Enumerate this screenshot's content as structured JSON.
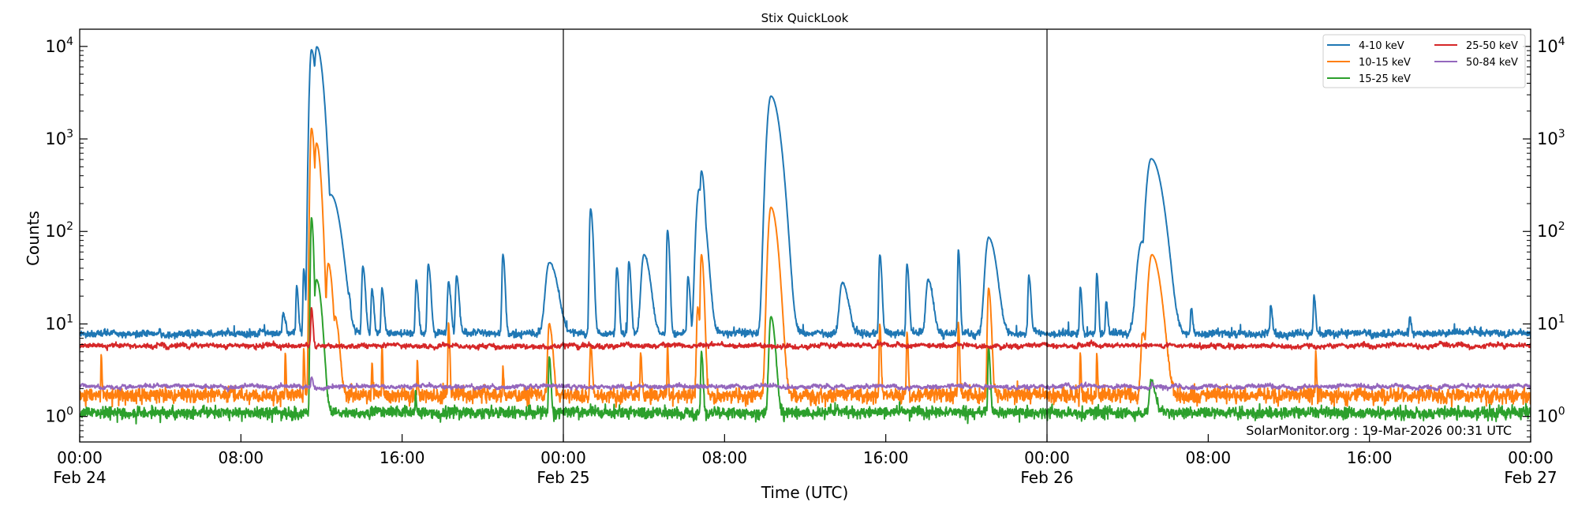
{
  "chart_data": {
    "type": "line",
    "title": "Stix QuickLook",
    "xlabel": "Time (UTC)",
    "ylabel": "Counts",
    "yscale": "log",
    "ylim": [
      0.53,
      15350
    ],
    "xlim": [
      "Feb 24 00:00",
      "Feb 27 00:00"
    ],
    "grid": false,
    "legend_position": "top-right",
    "day_separators": [
      "Feb 25 00:00",
      "Feb 26 00:00"
    ],
    "yticks": [
      {
        "base": "10",
        "exp": "0",
        "value": 1
      },
      {
        "base": "10",
        "exp": "1",
        "value": 10
      },
      {
        "base": "10",
        "exp": "2",
        "value": 100
      },
      {
        "base": "10",
        "exp": "3",
        "value": 1000
      },
      {
        "base": "10",
        "exp": "4",
        "value": 10000
      }
    ],
    "xticks": [
      {
        "t": "Feb 24 00:00",
        "label": "00:00",
        "sub": "Feb 24"
      },
      {
        "t": "Feb 24 08:00",
        "label": "08:00",
        "sub": ""
      },
      {
        "t": "Feb 24 16:00",
        "label": "16:00",
        "sub": ""
      },
      {
        "t": "Feb 25 00:00",
        "label": "00:00",
        "sub": "Feb 25"
      },
      {
        "t": "Feb 25 08:00",
        "label": "08:00",
        "sub": ""
      },
      {
        "t": "Feb 25 16:00",
        "label": "16:00",
        "sub": ""
      },
      {
        "t": "Feb 26 00:00",
        "label": "00:00",
        "sub": "Feb 26"
      },
      {
        "t": "Feb 26 08:00",
        "label": "08:00",
        "sub": ""
      },
      {
        "t": "Feb 26 16:00",
        "label": "16:00",
        "sub": ""
      },
      {
        "t": "Feb 27 00:00",
        "label": "00:00",
        "sub": "Feb 27"
      }
    ],
    "series": [
      {
        "name": "4-10 keV",
        "color": "#1f77b4",
        "baseline": 7.9,
        "peaks": [
          {
            "t": "Feb 24 10:06",
            "v": 13,
            "dur_min": 6
          },
          {
            "t": "Feb 24 10:46",
            "v": 26,
            "dur_min": 4
          },
          {
            "t": "Feb 24 11:07",
            "v": 39,
            "dur_min": 4
          },
          {
            "t": "Feb 24 11:30",
            "v": 9200,
            "dur_min": 10
          },
          {
            "t": "Feb 24 11:46",
            "v": 9900,
            "dur_min": 14
          },
          {
            "t": "Feb 24 12:27",
            "v": 250,
            "dur_min": 22
          },
          {
            "t": "Feb 24 13:21",
            "v": 22,
            "dur_min": 5
          },
          {
            "t": "Feb 24 14:03",
            "v": 42,
            "dur_min": 6
          },
          {
            "t": "Feb 24 14:30",
            "v": 24,
            "dur_min": 5
          },
          {
            "t": "Feb 24 15:00",
            "v": 24,
            "dur_min": 5
          },
          {
            "t": "Feb 24 16:42",
            "v": 30,
            "dur_min": 5
          },
          {
            "t": "Feb 24 17:18",
            "v": 44,
            "dur_min": 6
          },
          {
            "t": "Feb 24 18:18",
            "v": 28,
            "dur_min": 6
          },
          {
            "t": "Feb 24 18:42",
            "v": 33,
            "dur_min": 6
          },
          {
            "t": "Feb 24 21:00",
            "v": 56,
            "dur_min": 5
          },
          {
            "t": "Feb 24 23:18",
            "v": 46,
            "dur_min": 20
          },
          {
            "t": "Feb 25 01:21",
            "v": 175,
            "dur_min": 6
          },
          {
            "t": "Feb 25 02:39",
            "v": 41,
            "dur_min": 5
          },
          {
            "t": "Feb 25 03:15",
            "v": 47,
            "dur_min": 5
          },
          {
            "t": "Feb 25 04:00",
            "v": 56,
            "dur_min": 15
          },
          {
            "t": "Feb 25 05:10",
            "v": 103,
            "dur_min": 5
          },
          {
            "t": "Feb 25 06:11",
            "v": 32,
            "dur_min": 5
          },
          {
            "t": "Feb 25 06:44",
            "v": 285,
            "dur_min": 15
          },
          {
            "t": "Feb 25 06:51",
            "v": 450,
            "dur_min": 8
          },
          {
            "t": "Feb 25 10:18",
            "v": 2900,
            "dur_min": 20
          },
          {
            "t": "Feb 25 13:50",
            "v": 28,
            "dur_min": 15
          },
          {
            "t": "Feb 25 15:42",
            "v": 56,
            "dur_min": 5
          },
          {
            "t": "Feb 25 17:03",
            "v": 44,
            "dur_min": 5
          },
          {
            "t": "Feb 25 18:06",
            "v": 30,
            "dur_min": 12
          },
          {
            "t": "Feb 25 19:36",
            "v": 63,
            "dur_min": 4
          },
          {
            "t": "Feb 25 21:06",
            "v": 86,
            "dur_min": 18
          },
          {
            "t": "Feb 25 23:06",
            "v": 33,
            "dur_min": 5
          },
          {
            "t": "Feb 26 01:39",
            "v": 25,
            "dur_min": 4
          },
          {
            "t": "Feb 26 02:28",
            "v": 35,
            "dur_min": 4
          },
          {
            "t": "Feb 26 02:56",
            "v": 17.6,
            "dur_min": 4
          },
          {
            "t": "Feb 26 04:42",
            "v": 77,
            "dur_min": 25
          },
          {
            "t": "Feb 26 05:10",
            "v": 610,
            "dur_min": 25
          },
          {
            "t": "Feb 26 07:09",
            "v": 15,
            "dur_min": 4
          },
          {
            "t": "Feb 26 11:06",
            "v": 16,
            "dur_min": 4
          },
          {
            "t": "Feb 26 13:15",
            "v": 20,
            "dur_min": 4
          },
          {
            "t": "Feb 26 18:00",
            "v": 12,
            "dur_min": 4
          }
        ]
      },
      {
        "name": "10-15 keV",
        "color": "#ff7f0e",
        "baseline": 1.7,
        "peaks": [
          {
            "t": "Feb 24 01:04",
            "v": 4.5,
            "dur_min": 2
          },
          {
            "t": "Feb 24 10:12",
            "v": 5,
            "dur_min": 2
          },
          {
            "t": "Feb 24 11:07",
            "v": 5.5,
            "dur_min": 2
          },
          {
            "t": "Feb 24 11:30",
            "v": 1300,
            "dur_min": 7
          },
          {
            "t": "Feb 24 11:45",
            "v": 900,
            "dur_min": 10
          },
          {
            "t": "Feb 24 12:20",
            "v": 45,
            "dur_min": 10
          },
          {
            "t": "Feb 24 12:40",
            "v": 12,
            "dur_min": 10
          },
          {
            "t": "Feb 24 14:30",
            "v": 4,
            "dur_min": 2
          },
          {
            "t": "Feb 24 15:00",
            "v": 5.5,
            "dur_min": 2
          },
          {
            "t": "Feb 24 16:45",
            "v": 4,
            "dur_min": 2
          },
          {
            "t": "Feb 24 18:18",
            "v": 10,
            "dur_min": 3
          },
          {
            "t": "Feb 24 21:00",
            "v": 3.5,
            "dur_min": 2
          },
          {
            "t": "Feb 24 23:18",
            "v": 10,
            "dur_min": 8
          },
          {
            "t": "Feb 25 01:21",
            "v": 6,
            "dur_min": 4
          },
          {
            "t": "Feb 25 03:50",
            "v": 5,
            "dur_min": 3
          },
          {
            "t": "Feb 25 05:10",
            "v": 6,
            "dur_min": 2
          },
          {
            "t": "Feb 25 06:40",
            "v": 15,
            "dur_min": 6
          },
          {
            "t": "Feb 25 06:51",
            "v": 56,
            "dur_min": 6
          },
          {
            "t": "Feb 25 10:18",
            "v": 182,
            "dur_min": 15
          },
          {
            "t": "Feb 25 15:42",
            "v": 10,
            "dur_min": 3
          },
          {
            "t": "Feb 25 17:03",
            "v": 8,
            "dur_min": 3
          },
          {
            "t": "Feb 25 19:36",
            "v": 10,
            "dur_min": 3
          },
          {
            "t": "Feb 25 21:06",
            "v": 24,
            "dur_min": 6
          },
          {
            "t": "Feb 26 01:39",
            "v": 5,
            "dur_min": 2
          },
          {
            "t": "Feb 26 02:28",
            "v": 5,
            "dur_min": 2
          },
          {
            "t": "Feb 26 04:45",
            "v": 8,
            "dur_min": 10
          },
          {
            "t": "Feb 26 05:12",
            "v": 56,
            "dur_min": 20
          },
          {
            "t": "Feb 26 13:20",
            "v": 5,
            "dur_min": 2
          }
        ]
      },
      {
        "name": "15-25 keV",
        "color": "#2ca02c",
        "baseline": 1.1,
        "peaks": [
          {
            "t": "Feb 24 11:30",
            "v": 140,
            "dur_min": 5
          },
          {
            "t": "Feb 24 11:45",
            "v": 30,
            "dur_min": 12
          },
          {
            "t": "Feb 24 16:40",
            "v": 2,
            "dur_min": 2
          },
          {
            "t": "Feb 24 23:18",
            "v": 4.5,
            "dur_min": 4
          },
          {
            "t": "Feb 25 06:51",
            "v": 5,
            "dur_min": 4
          },
          {
            "t": "Feb 25 10:18",
            "v": 12,
            "dur_min": 10
          },
          {
            "t": "Feb 25 21:06",
            "v": 5.5,
            "dur_min": 4
          },
          {
            "t": "Feb 26 05:10",
            "v": 2.5,
            "dur_min": 10
          }
        ]
      },
      {
        "name": "25-50 keV",
        "color": "#d62728",
        "baseline": 5.8,
        "peaks": [
          {
            "t": "Feb 24 11:30",
            "v": 15,
            "dur_min": 4
          }
        ]
      },
      {
        "name": "50-84 keV",
        "color": "#9467bd",
        "baseline": 2.1,
        "peaks": [
          {
            "t": "Feb 24 11:30",
            "v": 2.8,
            "dur_min": 4
          },
          {
            "t": "Feb 26 05:12",
            "v": 2.3,
            "dur_min": 4
          }
        ]
      }
    ],
    "annotation": "SolarMonitor.org : 19-Mar-2026 00:31 UTC"
  }
}
